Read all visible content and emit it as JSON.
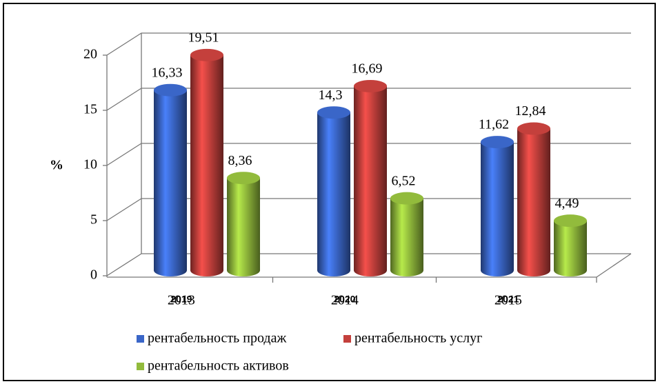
{
  "chart_data": {
    "type": "bar3d",
    "y_label": "%",
    "categories": [
      "2019",
      "2020",
      "2021"
    ],
    "underlying_labels": [
      "2013",
      "2014",
      "2015"
    ],
    "ylim": [
      0,
      20
    ],
    "yticks": [
      0,
      5,
      10,
      15,
      20
    ],
    "grid": true,
    "series": [
      {
        "name": "рентабельность продаж",
        "color": "#3a66c8",
        "values": [
          16.33,
          14.3,
          11.62
        ],
        "value_labels": [
          "16,33",
          "14,3",
          "11,62"
        ]
      },
      {
        "name": "рентабельность услуг",
        "color": "#c4403c",
        "values": [
          19.51,
          16.69,
          12.84
        ],
        "value_labels": [
          "19,51",
          "16,69",
          "12,84"
        ]
      },
      {
        "name": "рентабельность активов",
        "color": "#92bb3c",
        "values": [
          8.36,
          6.52,
          4.49
        ],
        "value_labels": [
          "8,36",
          "6,52",
          "4,49"
        ]
      }
    ]
  }
}
